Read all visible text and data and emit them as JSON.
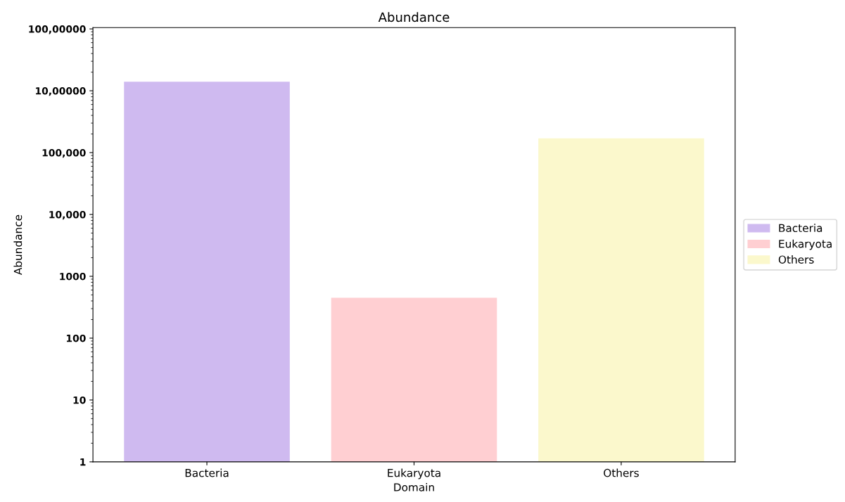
{
  "chart_data": {
    "type": "bar",
    "title": "Abundance",
    "xlabel": "Domain",
    "ylabel": "Abundance",
    "categories": [
      "Bacteria",
      "Eukaryota",
      "Others"
    ],
    "series": [
      {
        "name": "Bacteria",
        "color": "#cfbaf0",
        "values": [
          1400000,
          null,
          null
        ]
      },
      {
        "name": "Eukaryota",
        "color": "#ffcfd2",
        "values": [
          null,
          450,
          null
        ]
      },
      {
        "name": "Others",
        "color": "#fbf8cc",
        "values": [
          null,
          null,
          170000
        ]
      }
    ],
    "log": "y",
    "ylim": [
      1,
      10000000
    ],
    "yticks": [
      1,
      10,
      100,
      1000,
      {
        "value": 10000,
        "label": "10,000"
      },
      {
        "value": 100000,
        "label": "100,000"
      },
      {
        "value": 1000000,
        "label": "10,00000"
      },
      {
        "value": 10000000,
        "label": "100,00000"
      }
    ],
    "grid": false,
    "legend": "right"
  }
}
